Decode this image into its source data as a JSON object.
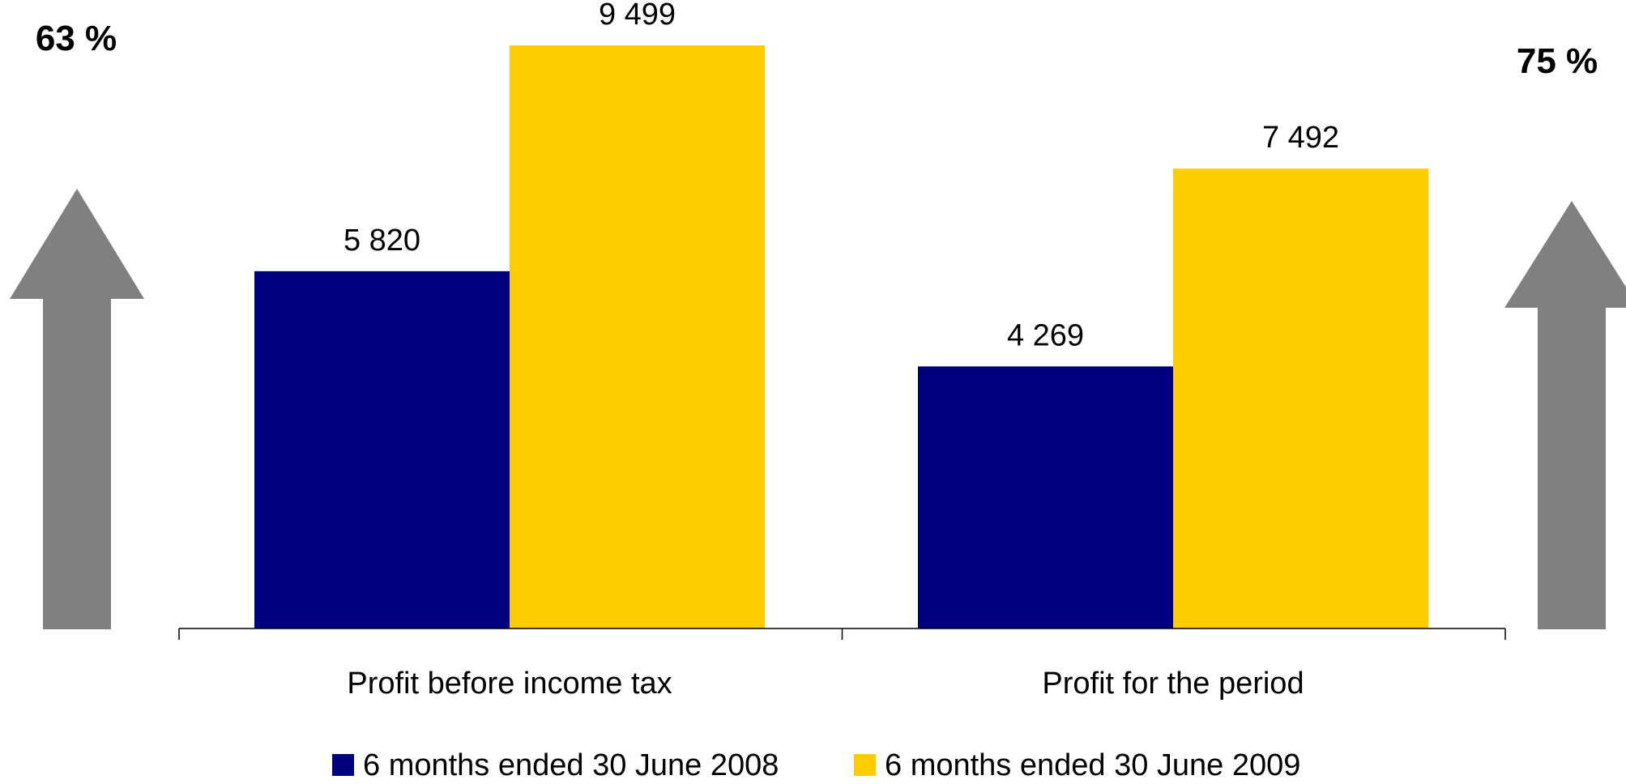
{
  "chart_data": {
    "type": "bar",
    "categories": [
      "Profit before income tax",
      "Profit for the period"
    ],
    "series": [
      {
        "name": "6 months ended 30 June 2008",
        "values": [
          5820,
          4269
        ],
        "labels": [
          "5 820",
          "4 269"
        ],
        "color": "#000080"
      },
      {
        "name": "6 months ended 30 June 2009",
        "values": [
          9499,
          7492
        ],
        "labels": [
          "9 499",
          "7 492"
        ],
        "color": "#FFCC00"
      }
    ],
    "ylim": [
      0,
      9499
    ],
    "legend": "bottom",
    "grid": false,
    "annotations": [
      {
        "text": "63 %",
        "category": "Profit before income tax",
        "icon": "up-arrow-icon",
        "color": "#808080"
      },
      {
        "text": "75 %",
        "category": "Profit for the period",
        "icon": "up-arrow-icon",
        "color": "#808080"
      }
    ]
  }
}
